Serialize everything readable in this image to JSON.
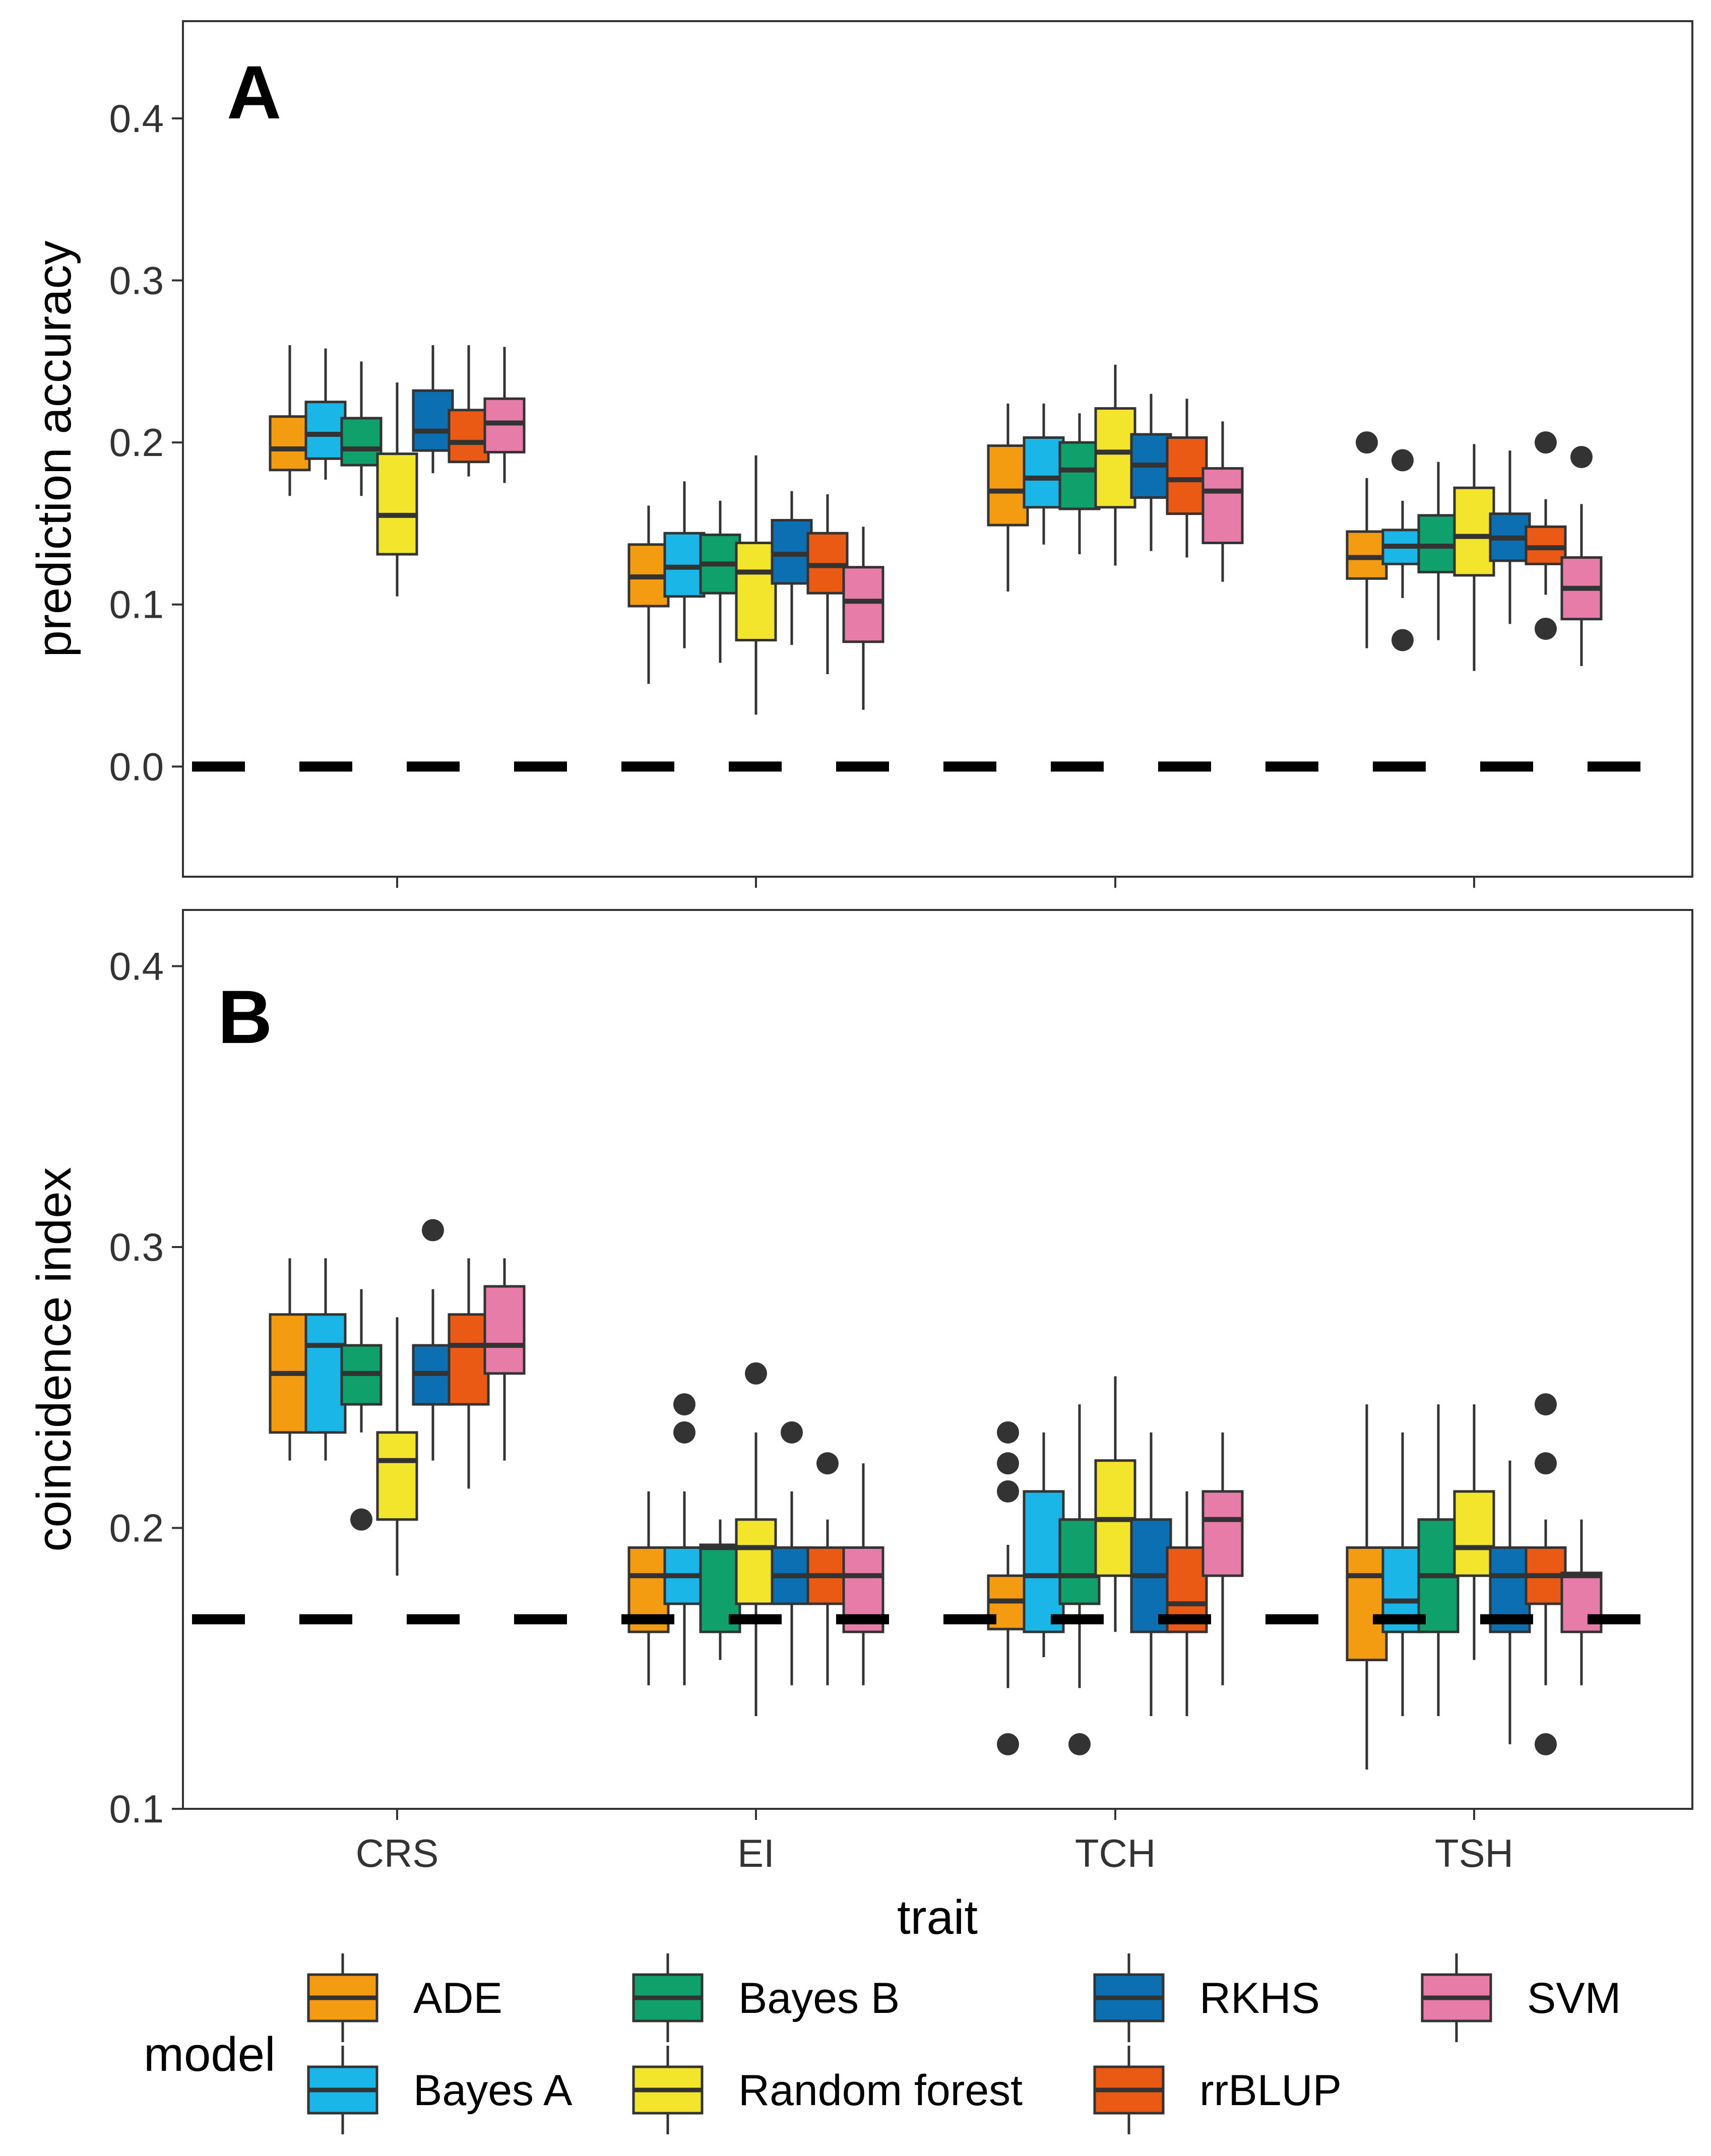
{
  "chart_data": [
    {
      "type": "boxplot",
      "panel": "A",
      "ylabel": "prediction accuracy",
      "xlabel": "",
      "ylim": [
        -0.068,
        0.46
      ],
      "yticks": [
        0.0,
        0.1,
        0.2,
        0.3,
        0.4
      ],
      "ytick_labels": [
        "0.0",
        "0.1",
        "0.2",
        "0.3",
        "0.4"
      ],
      "reference_line": 0.0,
      "categories": [
        "CRS",
        "EI",
        "TCH",
        "TSH"
      ],
      "series": [
        {
          "name": "ADE",
          "boxes": [
            {
              "min": 0.167,
              "q1": 0.183,
              "median": 0.196,
              "q3": 0.216,
              "max": 0.26,
              "outliers": []
            },
            {
              "min": 0.051,
              "q1": 0.099,
              "median": 0.117,
              "q3": 0.137,
              "max": 0.161,
              "outliers": []
            },
            {
              "min": 0.108,
              "q1": 0.149,
              "median": 0.17,
              "q3": 0.198,
              "max": 0.224,
              "outliers": []
            },
            {
              "min": 0.073,
              "q1": 0.116,
              "median": 0.129,
              "q3": 0.145,
              "max": 0.178,
              "outliers": [
                0.2
              ]
            }
          ]
        },
        {
          "name": "Bayes A",
          "boxes": [
            {
              "min": 0.177,
              "q1": 0.19,
              "median": 0.205,
              "q3": 0.225,
              "max": 0.258,
              "outliers": []
            },
            {
              "min": 0.073,
              "q1": 0.105,
              "median": 0.123,
              "q3": 0.144,
              "max": 0.176,
              "outliers": []
            },
            {
              "min": 0.137,
              "q1": 0.16,
              "median": 0.178,
              "q3": 0.203,
              "max": 0.224,
              "outliers": []
            },
            {
              "min": 0.104,
              "q1": 0.125,
              "median": 0.136,
              "q3": 0.146,
              "max": 0.164,
              "outliers": [
                0.078,
                0.189
              ]
            }
          ]
        },
        {
          "name": "Bayes B",
          "boxes": [
            {
              "min": 0.167,
              "q1": 0.186,
              "median": 0.196,
              "q3": 0.215,
              "max": 0.25,
              "outliers": []
            },
            {
              "min": 0.064,
              "q1": 0.107,
              "median": 0.125,
              "q3": 0.143,
              "max": 0.164,
              "outliers": []
            },
            {
              "min": 0.131,
              "q1": 0.159,
              "median": 0.183,
              "q3": 0.2,
              "max": 0.218,
              "outliers": []
            },
            {
              "min": 0.078,
              "q1": 0.12,
              "median": 0.136,
              "q3": 0.155,
              "max": 0.188,
              "outliers": []
            }
          ]
        },
        {
          "name": "Random forest",
          "boxes": [
            {
              "min": 0.105,
              "q1": 0.131,
              "median": 0.155,
              "q3": 0.193,
              "max": 0.237,
              "outliers": []
            },
            {
              "min": 0.032,
              "q1": 0.078,
              "median": 0.12,
              "q3": 0.138,
              "max": 0.192,
              "outliers": []
            },
            {
              "min": 0.124,
              "q1": 0.16,
              "median": 0.194,
              "q3": 0.221,
              "max": 0.248,
              "outliers": []
            },
            {
              "min": 0.059,
              "q1": 0.118,
              "median": 0.142,
              "q3": 0.172,
              "max": 0.199,
              "outliers": []
            }
          ]
        },
        {
          "name": "RKHS",
          "boxes": [
            {
              "min": 0.181,
              "q1": 0.195,
              "median": 0.207,
              "q3": 0.232,
              "max": 0.26,
              "outliers": []
            },
            {
              "min": 0.075,
              "q1": 0.113,
              "median": 0.131,
              "q3": 0.152,
              "max": 0.17,
              "outliers": []
            },
            {
              "min": 0.133,
              "q1": 0.166,
              "median": 0.186,
              "q3": 0.205,
              "max": 0.23,
              "outliers": []
            },
            {
              "min": 0.088,
              "q1": 0.127,
              "median": 0.141,
              "q3": 0.156,
              "max": 0.195,
              "outliers": []
            }
          ]
        },
        {
          "name": "rrBLUP",
          "boxes": [
            {
              "min": 0.179,
              "q1": 0.188,
              "median": 0.2,
              "q3": 0.22,
              "max": 0.26,
              "outliers": []
            },
            {
              "min": 0.057,
              "q1": 0.107,
              "median": 0.124,
              "q3": 0.144,
              "max": 0.168,
              "outliers": []
            },
            {
              "min": 0.129,
              "q1": 0.156,
              "median": 0.177,
              "q3": 0.203,
              "max": 0.227,
              "outliers": []
            },
            {
              "min": 0.106,
              "q1": 0.125,
              "median": 0.135,
              "q3": 0.148,
              "max": 0.165,
              "outliers": [
                0.085,
                0.2
              ]
            }
          ]
        },
        {
          "name": "SVM",
          "boxes": [
            {
              "min": 0.175,
              "q1": 0.194,
              "median": 0.212,
              "q3": 0.227,
              "max": 0.259,
              "outliers": []
            },
            {
              "min": 0.035,
              "q1": 0.077,
              "median": 0.102,
              "q3": 0.123,
              "max": 0.148,
              "outliers": []
            },
            {
              "min": 0.114,
              "q1": 0.138,
              "median": 0.17,
              "q3": 0.184,
              "max": 0.213,
              "outliers": []
            },
            {
              "min": 0.062,
              "q1": 0.091,
              "median": 0.11,
              "q3": 0.129,
              "max": 0.162,
              "outliers": [
                0.191
              ]
            }
          ]
        }
      ]
    },
    {
      "type": "boxplot",
      "panel": "B",
      "ylabel": "coincidence index",
      "xlabel": "trait",
      "ylim": [
        0.1,
        0.42
      ],
      "yticks": [
        0.1,
        0.2,
        0.3,
        0.4
      ],
      "ytick_labels": [
        "0.1",
        "0.2",
        "0.3",
        "0.4"
      ],
      "reference_line": 0.1675,
      "categories": [
        "CRS",
        "EI",
        "TCH",
        "TSH"
      ],
      "series": [
        {
          "name": "ADE",
          "boxes": [
            {
              "min": 0.224,
              "q1": 0.234,
              "median": 0.255,
              "q3": 0.276,
              "max": 0.296,
              "outliers": []
            },
            {
              "min": 0.144,
              "q1": 0.163,
              "median": 0.183,
              "q3": 0.193,
              "max": 0.213,
              "outliers": []
            },
            {
              "min": 0.143,
              "q1": 0.164,
              "median": 0.174,
              "q3": 0.183,
              "max": 0.194,
              "outliers": [
                0.123,
                0.213,
                0.223,
                0.234
              ]
            },
            {
              "min": 0.114,
              "q1": 0.153,
              "median": 0.183,
              "q3": 0.193,
              "max": 0.244,
              "outliers": []
            }
          ]
        },
        {
          "name": "Bayes A",
          "boxes": [
            {
              "min": 0.224,
              "q1": 0.234,
              "median": 0.265,
              "q3": 0.276,
              "max": 0.296,
              "outliers": []
            },
            {
              "min": 0.144,
              "q1": 0.173,
              "median": 0.183,
              "q3": 0.193,
              "max": 0.213,
              "outliers": [
                0.234,
                0.244
              ]
            },
            {
              "min": 0.154,
              "q1": 0.163,
              "median": 0.183,
              "q3": 0.213,
              "max": 0.234,
              "outliers": []
            },
            {
              "min": 0.133,
              "q1": 0.163,
              "median": 0.174,
              "q3": 0.193,
              "max": 0.234,
              "outliers": []
            }
          ]
        },
        {
          "name": "Bayes B",
          "boxes": [
            {
              "min": 0.234,
              "q1": 0.244,
              "median": 0.255,
              "q3": 0.265,
              "max": 0.285,
              "outliers": [
                0.203
              ]
            },
            {
              "min": 0.153,
              "q1": 0.163,
              "median": 0.193,
              "q3": 0.194,
              "max": 0.203,
              "outliers": []
            },
            {
              "min": 0.143,
              "q1": 0.173,
              "median": 0.183,
              "q3": 0.203,
              "max": 0.244,
              "outliers": [
                0.123
              ]
            },
            {
              "min": 0.133,
              "q1": 0.163,
              "median": 0.183,
              "q3": 0.203,
              "max": 0.244,
              "outliers": []
            }
          ]
        },
        {
          "name": "Random forest",
          "boxes": [
            {
              "min": 0.183,
              "q1": 0.203,
              "median": 0.224,
              "q3": 0.234,
              "max": 0.275,
              "outliers": []
            },
            {
              "min": 0.133,
              "q1": 0.173,
              "median": 0.193,
              "q3": 0.203,
              "max": 0.234,
              "outliers": [
                0.255
              ]
            },
            {
              "min": 0.163,
              "q1": 0.183,
              "median": 0.203,
              "q3": 0.224,
              "max": 0.254,
              "outliers": []
            },
            {
              "min": 0.153,
              "q1": 0.183,
              "median": 0.193,
              "q3": 0.213,
              "max": 0.244,
              "outliers": []
            }
          ]
        },
        {
          "name": "RKHS",
          "boxes": [
            {
              "min": 0.224,
              "q1": 0.244,
              "median": 0.255,
              "q3": 0.265,
              "max": 0.285,
              "outliers": [
                0.306
              ]
            },
            {
              "min": 0.144,
              "q1": 0.173,
              "median": 0.183,
              "q3": 0.193,
              "max": 0.213,
              "outliers": [
                0.234
              ]
            },
            {
              "min": 0.133,
              "q1": 0.163,
              "median": 0.183,
              "q3": 0.203,
              "max": 0.234,
              "outliers": []
            },
            {
              "min": 0.123,
              "q1": 0.163,
              "median": 0.183,
              "q3": 0.193,
              "max": 0.224,
              "outliers": []
            }
          ]
        },
        {
          "name": "rrBLUP",
          "boxes": [
            {
              "min": 0.214,
              "q1": 0.244,
              "median": 0.265,
              "q3": 0.276,
              "max": 0.296,
              "outliers": []
            },
            {
              "min": 0.144,
              "q1": 0.173,
              "median": 0.183,
              "q3": 0.193,
              "max": 0.203,
              "outliers": [
                0.223
              ]
            },
            {
              "min": 0.133,
              "q1": 0.163,
              "median": 0.173,
              "q3": 0.193,
              "max": 0.213,
              "outliers": []
            },
            {
              "min": 0.144,
              "q1": 0.173,
              "median": 0.183,
              "q3": 0.193,
              "max": 0.203,
              "outliers": [
                0.123,
                0.223,
                0.244
              ]
            }
          ]
        },
        {
          "name": "SVM",
          "boxes": [
            {
              "min": 0.224,
              "q1": 0.255,
              "median": 0.265,
              "q3": 0.286,
              "max": 0.296,
              "outliers": []
            },
            {
              "min": 0.144,
              "q1": 0.163,
              "median": 0.183,
              "q3": 0.193,
              "max": 0.223,
              "outliers": []
            },
            {
              "min": 0.144,
              "q1": 0.183,
              "median": 0.203,
              "q3": 0.213,
              "max": 0.234,
              "outliers": []
            },
            {
              "min": 0.144,
              "q1": 0.163,
              "median": 0.183,
              "q3": 0.184,
              "max": 0.203,
              "outliers": []
            }
          ]
        }
      ]
    }
  ],
  "legend": {
    "title": "model",
    "position": "bottom",
    "items": [
      {
        "name": "ADE",
        "color": "#F39C12"
      },
      {
        "name": "Bayes A",
        "color": "#1BB6E8"
      },
      {
        "name": "Bayes B",
        "color": "#0FA06B"
      },
      {
        "name": "Random forest",
        "color": "#F2E52B"
      },
      {
        "name": "RKHS",
        "color": "#0B6FB2"
      },
      {
        "name": "rrBLUP",
        "color": "#EA5A14"
      },
      {
        "name": "SVM",
        "color": "#E87CA8"
      }
    ]
  }
}
